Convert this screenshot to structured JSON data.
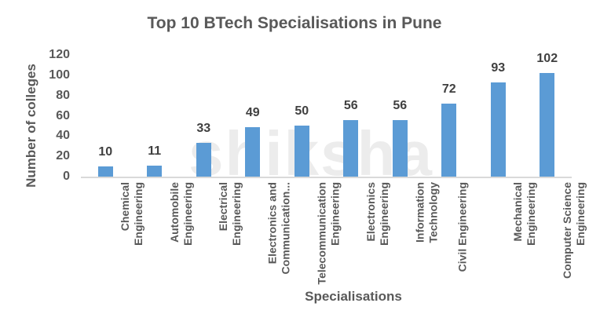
{
  "chart_data": {
    "type": "bar",
    "title": "Top 10 BTech Specialisations in Pune",
    "xlabel": "Specialisations",
    "ylabel": "Number of colleges",
    "ylim": [
      0,
      120
    ],
    "yticks": [
      "0",
      "20",
      "40",
      "60",
      "80",
      "100",
      "120"
    ],
    "grid": false,
    "legend": null,
    "categories": [
      "Chemical Engineering",
      "Automobile Engineering",
      "Electrical Engineering",
      "Electronics and Communication...",
      "Telecommunication Engineering",
      "Electronics Engineering",
      "Information Technology",
      "Civil Engineering",
      "Mechanical Engineering",
      "Computer Science Engineering"
    ],
    "category_lines": [
      "Chemical\nEngineering",
      "Automobile\nEngineering",
      "Electrical\nEngineering",
      "Electronics and\nCommunication...",
      "Telecommunication\nEngineering",
      "Electronics\nEngineering",
      "Information\nTechnology",
      "Civil Engineering",
      "Mechanical\nEngineering",
      "Computer Science\nEngineering"
    ],
    "values": [
      10,
      11,
      33,
      49,
      50,
      56,
      56,
      72,
      93,
      102
    ],
    "bar_color": "#5b9bd5"
  },
  "watermark": "shiksha"
}
